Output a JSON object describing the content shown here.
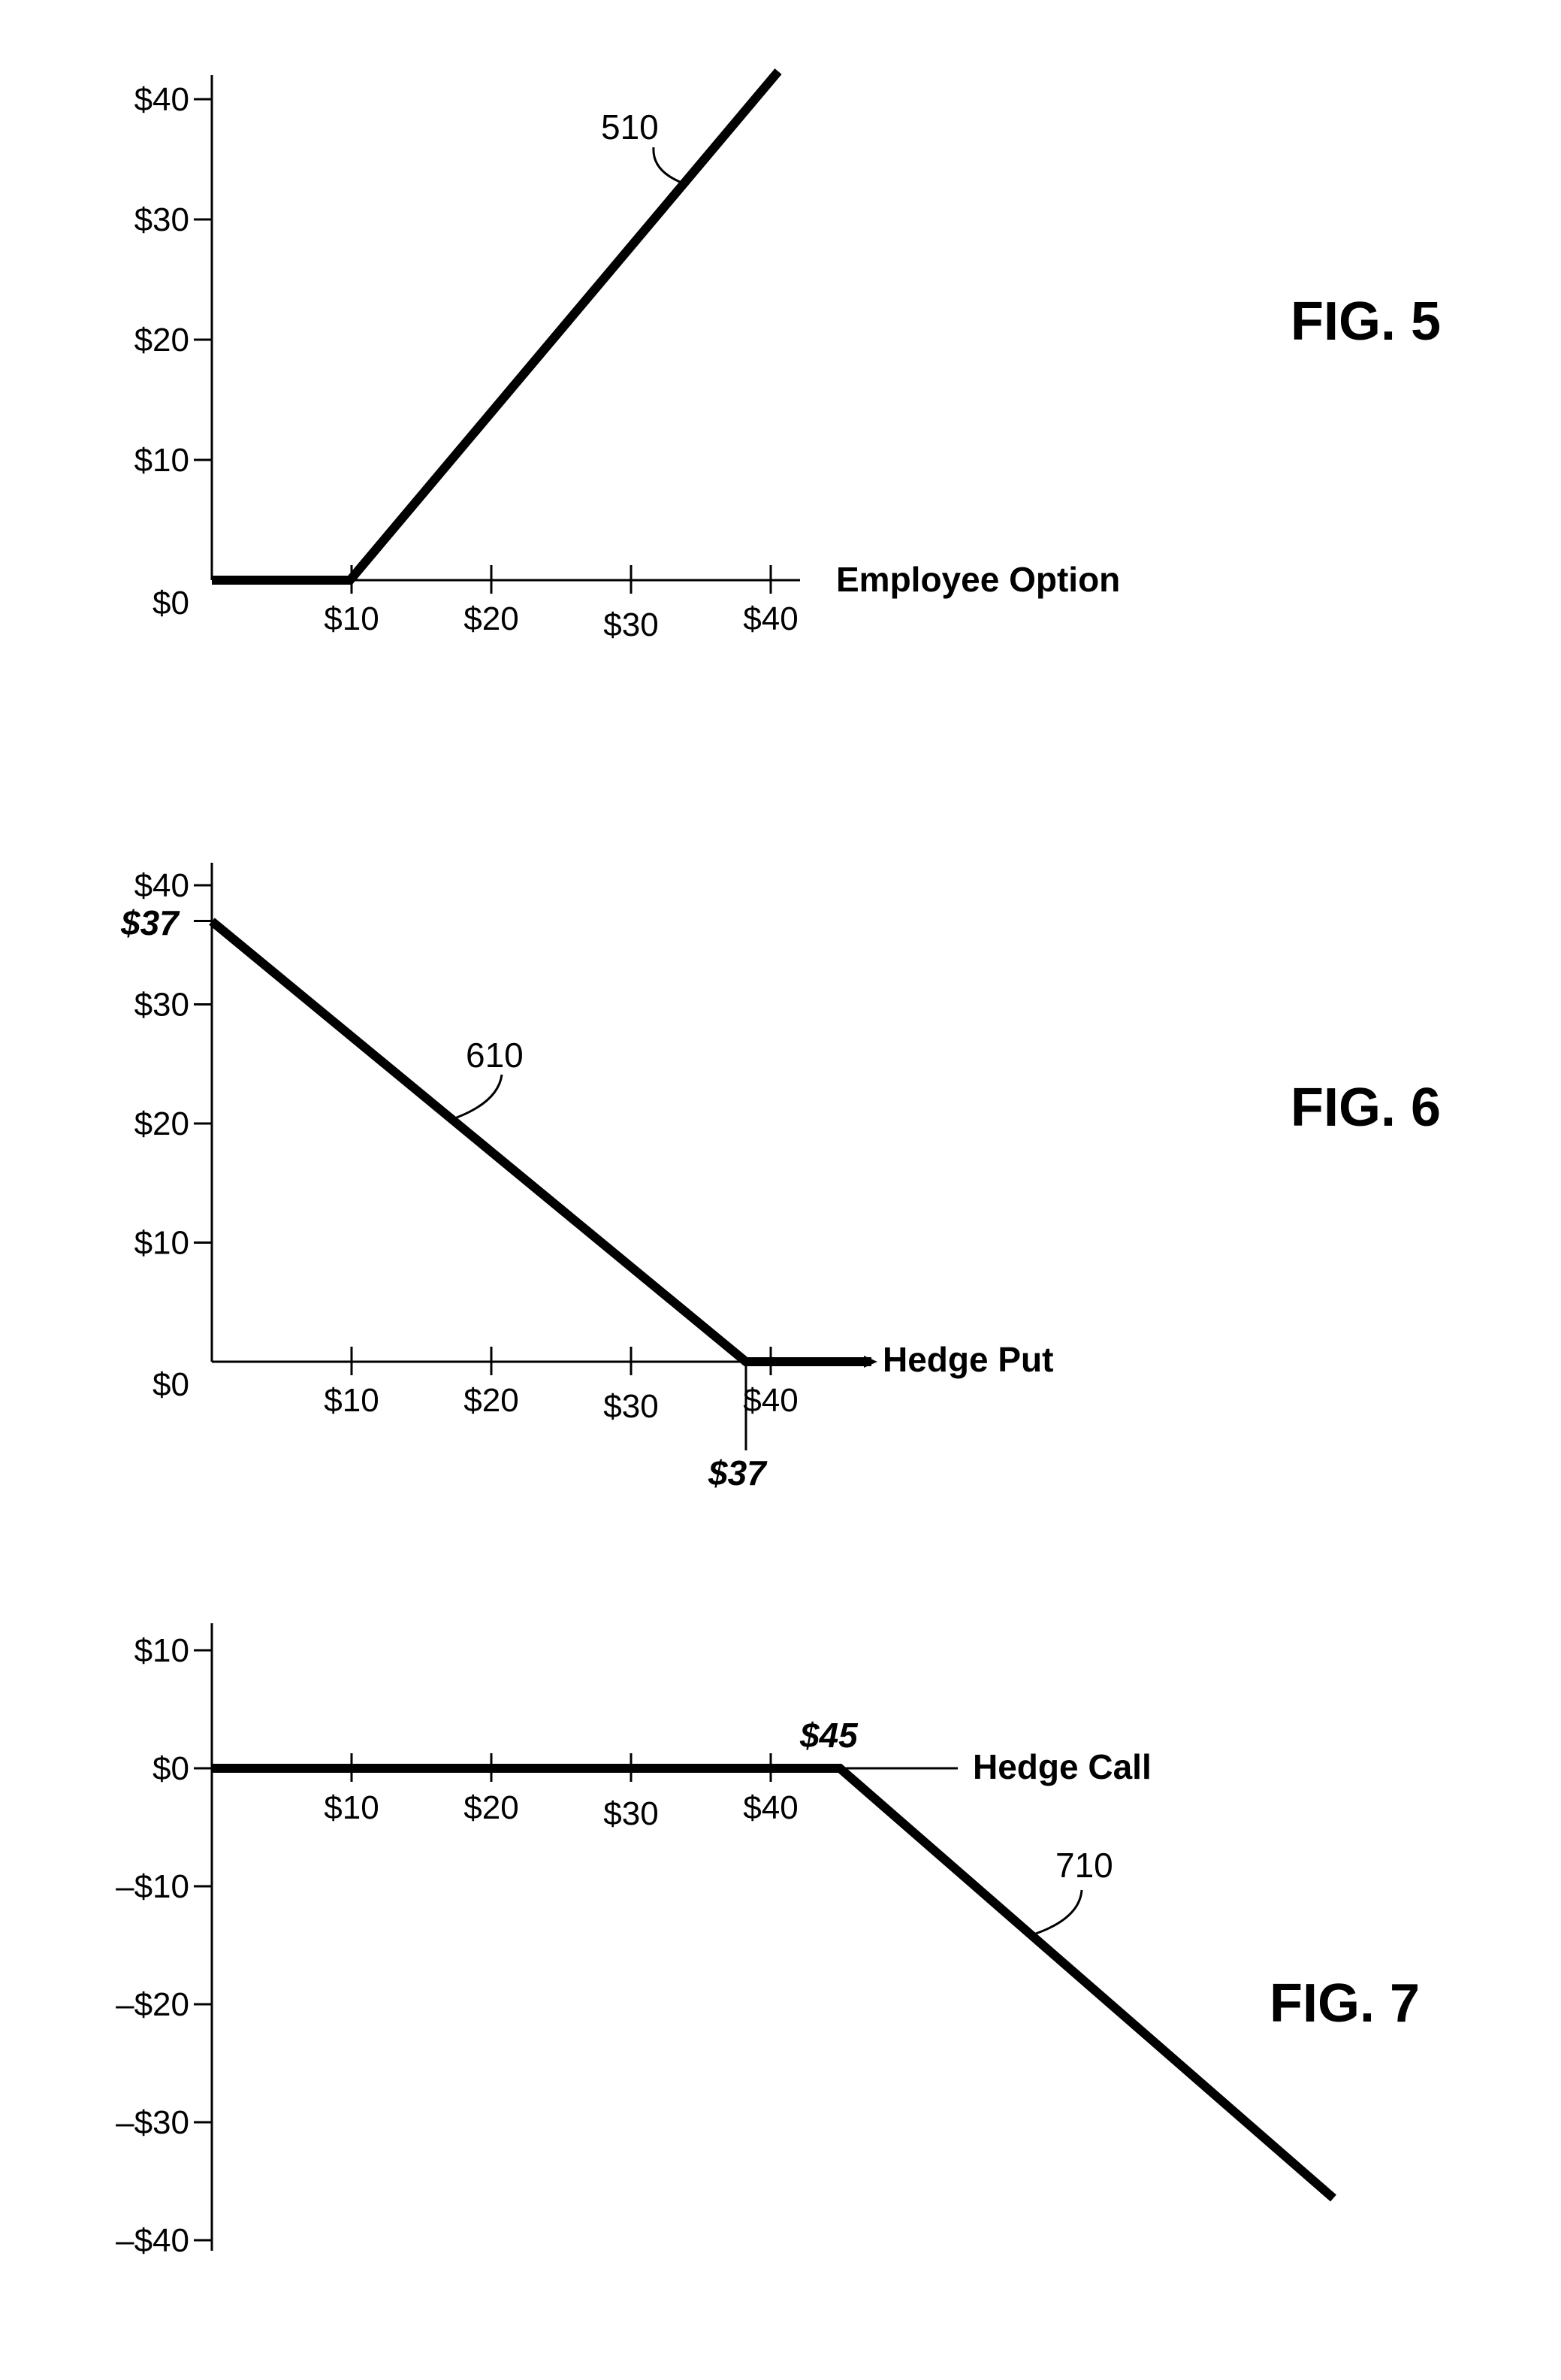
{
  "chart_data": [
    {
      "type": "line",
      "figure_label": "FIG. 5",
      "xlabel": "Employee Option",
      "ylabel": "",
      "x_ticks": [
        10,
        20,
        30,
        40
      ],
      "x_tick_labels": [
        "$10",
        "$20",
        "$30",
        "$40"
      ],
      "y_ticks": [
        0,
        10,
        20,
        30,
        40
      ],
      "y_tick_labels": [
        "$0",
        "$10",
        "$20",
        "$30",
        "$40"
      ],
      "xlim": [
        0,
        40
      ],
      "ylim": [
        0,
        40
      ],
      "series": [
        {
          "ref": "510",
          "points": [
            [
              0,
              0
            ],
            [
              10,
              0
            ],
            [
              40,
              42
            ]
          ]
        }
      ],
      "callouts": [],
      "grid": false
    },
    {
      "type": "line",
      "figure_label": "FIG. 6",
      "xlabel": "Hedge Put",
      "ylabel": "",
      "x_ticks": [
        10,
        20,
        30,
        40
      ],
      "x_tick_labels": [
        "$10",
        "$20",
        "$30",
        "$40"
      ],
      "y_ticks": [
        0,
        10,
        20,
        30,
        40
      ],
      "y_tick_labels": [
        "$0",
        "$10",
        "$20",
        "$30",
        "$40"
      ],
      "xlim": [
        0,
        40
      ],
      "ylim": [
        0,
        40
      ],
      "series": [
        {
          "ref": "610",
          "points": [
            [
              0,
              37
            ],
            [
              37,
              0
            ],
            [
              46,
              0
            ]
          ]
        }
      ],
      "callouts": [
        {
          "axis": "y",
          "value": 37,
          "label": "$37"
        },
        {
          "axis": "x",
          "value": 37,
          "label": "$37"
        }
      ],
      "grid": false
    },
    {
      "type": "line",
      "figure_label": "FIG. 7",
      "xlabel": "Hedge Call",
      "ylabel": "",
      "x_ticks": [
        10,
        20,
        30,
        40
      ],
      "x_tick_labels": [
        "$10",
        "$20",
        "$30",
        "$40"
      ],
      "y_ticks": [
        10,
        0,
        -10,
        -20,
        -30,
        -40
      ],
      "y_tick_labels": [
        "$10",
        "$0",
        "–$10",
        "–$20",
        "–$30",
        "–$40"
      ],
      "xlim": [
        0,
        40
      ],
      "ylim": [
        -40,
        10
      ],
      "series": [
        {
          "ref": "710",
          "points": [
            [
              0,
              0
            ],
            [
              44.5,
              0
            ],
            [
              79,
              -36
            ]
          ]
        }
      ],
      "callouts": [
        {
          "axis": "x",
          "value": 44.5,
          "label": "$45"
        }
      ],
      "grid": false
    }
  ]
}
